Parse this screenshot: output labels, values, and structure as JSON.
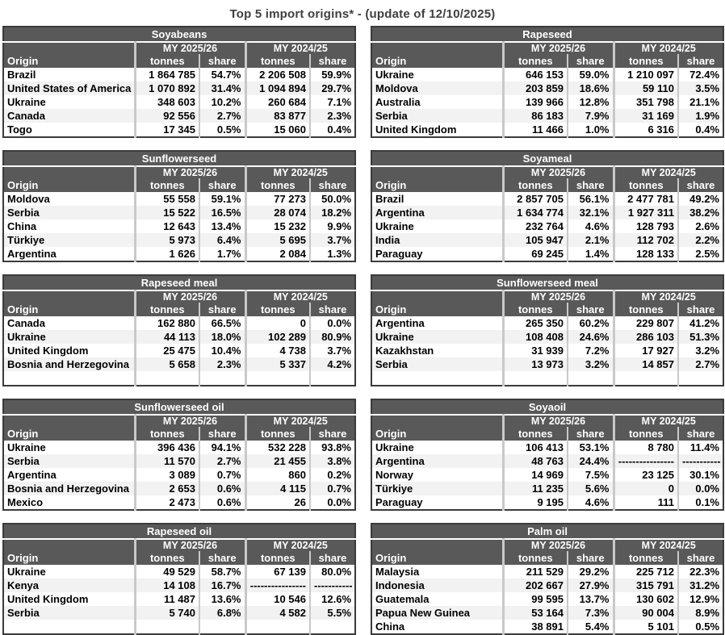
{
  "page_title": "Top 5 import origins* - (update of 12/10/2025)",
  "labels": {
    "origin": "Origin",
    "my_2025_26": "MY 2025/26",
    "my_2024_25": "MY 2024/25",
    "tonnes": "tonnes",
    "share": "share"
  },
  "colors": {
    "header_bg": "#595959",
    "header_text": "#ffffff",
    "stripe": "#f2f2f2",
    "outer_border": "#3b3b3b",
    "separator": "#c9c9c9",
    "title_text": "#3f3f3f"
  },
  "tables": [
    {
      "title": "Soyabeans",
      "filler_row": false,
      "rows": [
        [
          "Brazil",
          "1 864 785",
          "54.7%",
          "2 206 508",
          "59.9%"
        ],
        [
          "United States of America",
          "1 070 892",
          "31.4%",
          "1 094 894",
          "29.7%"
        ],
        [
          "Ukraine",
          "348 603",
          "10.2%",
          "260 684",
          "7.1%"
        ],
        [
          "Canada",
          "92 556",
          "2.7%",
          "83 877",
          "2.3%"
        ],
        [
          "Togo",
          "17 345",
          "0.5%",
          "15 060",
          "0.4%"
        ]
      ]
    },
    {
      "title": "Rapeseed",
      "filler_row": false,
      "rows": [
        [
          "Ukraine",
          "646 153",
          "59.0%",
          "1 210 097",
          "72.4%"
        ],
        [
          "Moldova",
          "203 859",
          "18.6%",
          "59 110",
          "3.5%"
        ],
        [
          "Australia",
          "139 966",
          "12.8%",
          "351 798",
          "21.1%"
        ],
        [
          "Serbia",
          "86 183",
          "7.9%",
          "31 169",
          "1.9%"
        ],
        [
          "United Kingdom",
          "11 466",
          "1.0%",
          "6 316",
          "0.4%"
        ]
      ]
    },
    {
      "title": "Sunflowerseed",
      "filler_row": false,
      "rows": [
        [
          "Moldova",
          "55 558",
          "59.1%",
          "77 273",
          "50.0%"
        ],
        [
          "Serbia",
          "15 522",
          "16.5%",
          "28 074",
          "18.2%"
        ],
        [
          "China",
          "12 643",
          "13.4%",
          "15 232",
          "9.9%"
        ],
        [
          "Türkiye",
          "5 973",
          "6.4%",
          "5 695",
          "3.7%"
        ],
        [
          "Argentina",
          "1 626",
          "1.7%",
          "2 084",
          "1.3%"
        ]
      ]
    },
    {
      "title": "Soyameal",
      "filler_row": false,
      "rows": [
        [
          "Brazil",
          "2 857 705",
          "56.1%",
          "2 477 781",
          "49.2%"
        ],
        [
          "Argentina",
          "1 634 774",
          "32.1%",
          "1 927 311",
          "38.2%"
        ],
        [
          "Ukraine",
          "232 764",
          "4.6%",
          "128 793",
          "2.6%"
        ],
        [
          "India",
          "105 947",
          "2.1%",
          "112 702",
          "2.2%"
        ],
        [
          "Paraguay",
          "69 245",
          "1.4%",
          "128 133",
          "2.5%"
        ]
      ]
    },
    {
      "title": "Rapeseed meal",
      "filler_row": true,
      "rows": [
        [
          "Canada",
          "162 880",
          "66.5%",
          "0",
          "0.0%"
        ],
        [
          "Ukraine",
          "44 113",
          "18.0%",
          "102 289",
          "80.9%"
        ],
        [
          "United Kingdom",
          "25 475",
          "10.4%",
          "4 738",
          "3.7%"
        ],
        [
          "Bosnia and Herzegovina",
          "5 658",
          "2.3%",
          "5 337",
          "4.2%"
        ]
      ]
    },
    {
      "title": "Sunflowerseed meal",
      "filler_row": true,
      "rows": [
        [
          "Argentina",
          "265 350",
          "60.2%",
          "229 807",
          "41.2%"
        ],
        [
          "Ukraine",
          "108 408",
          "24.6%",
          "286 103",
          "51.3%"
        ],
        [
          "Kazakhstan",
          "31 939",
          "7.2%",
          "17 927",
          "3.2%"
        ],
        [
          "Serbia",
          "13 973",
          "3.2%",
          "14 857",
          "2.7%"
        ]
      ]
    },
    {
      "title": "Sunflowerseed oil",
      "filler_row": false,
      "rows": [
        [
          "Ukraine",
          "396 436",
          "94.1%",
          "532 228",
          "93.8%"
        ],
        [
          "Serbia",
          "11 570",
          "2.7%",
          "21 455",
          "3.8%"
        ],
        [
          "Argentina",
          "3 089",
          "0.7%",
          "860",
          "0.2%"
        ],
        [
          "Bosnia and Herzegovina",
          "2 653",
          "0.6%",
          "4 115",
          "0.7%"
        ],
        [
          "Mexico",
          "2 473",
          "0.6%",
          "26",
          "0.0%"
        ]
      ]
    },
    {
      "title": "Soyaoil",
      "filler_row": false,
      "rows": [
        [
          "Ukraine",
          "106 413",
          "53.1%",
          "8 780",
          "11.4%"
        ],
        [
          "Argentina",
          "48 763",
          "24.4%",
          "----------------",
          "-----------"
        ],
        [
          "Norway",
          "14 969",
          "7.5%",
          "23 125",
          "30.1%"
        ],
        [
          "Türkiye",
          "11 235",
          "5.6%",
          "0",
          "0.0%"
        ],
        [
          "Paraguay",
          "9 195",
          "4.6%",
          "111",
          "0.1%"
        ]
      ]
    },
    {
      "title": "Rapeseed oil",
      "filler_row": true,
      "rows": [
        [
          "Ukraine",
          "49 529",
          "58.7%",
          "67 139",
          "80.0%"
        ],
        [
          "Kenya",
          "14 108",
          "16.7%",
          "----------------",
          "-----------"
        ],
        [
          "United Kingdom",
          "11 487",
          "13.6%",
          "10 546",
          "12.6%"
        ],
        [
          "Serbia",
          "5 740",
          "6.8%",
          "4 582",
          "5.5%"
        ]
      ]
    },
    {
      "title": "Palm oil",
      "filler_row": false,
      "rows": [
        [
          "Malaysia",
          "211 529",
          "29.2%",
          "225 712",
          "22.3%"
        ],
        [
          "Indonesia",
          "202 667",
          "27.9%",
          "315 791",
          "31.2%"
        ],
        [
          "Guatemala",
          "99 595",
          "13.7%",
          "130 602",
          "12.9%"
        ],
        [
          "Papua New Guinea",
          "53 164",
          "7.3%",
          "90 004",
          "8.9%"
        ],
        [
          "China",
          "38 891",
          "5.4%",
          "5 101",
          "0.5%"
        ]
      ]
    }
  ]
}
